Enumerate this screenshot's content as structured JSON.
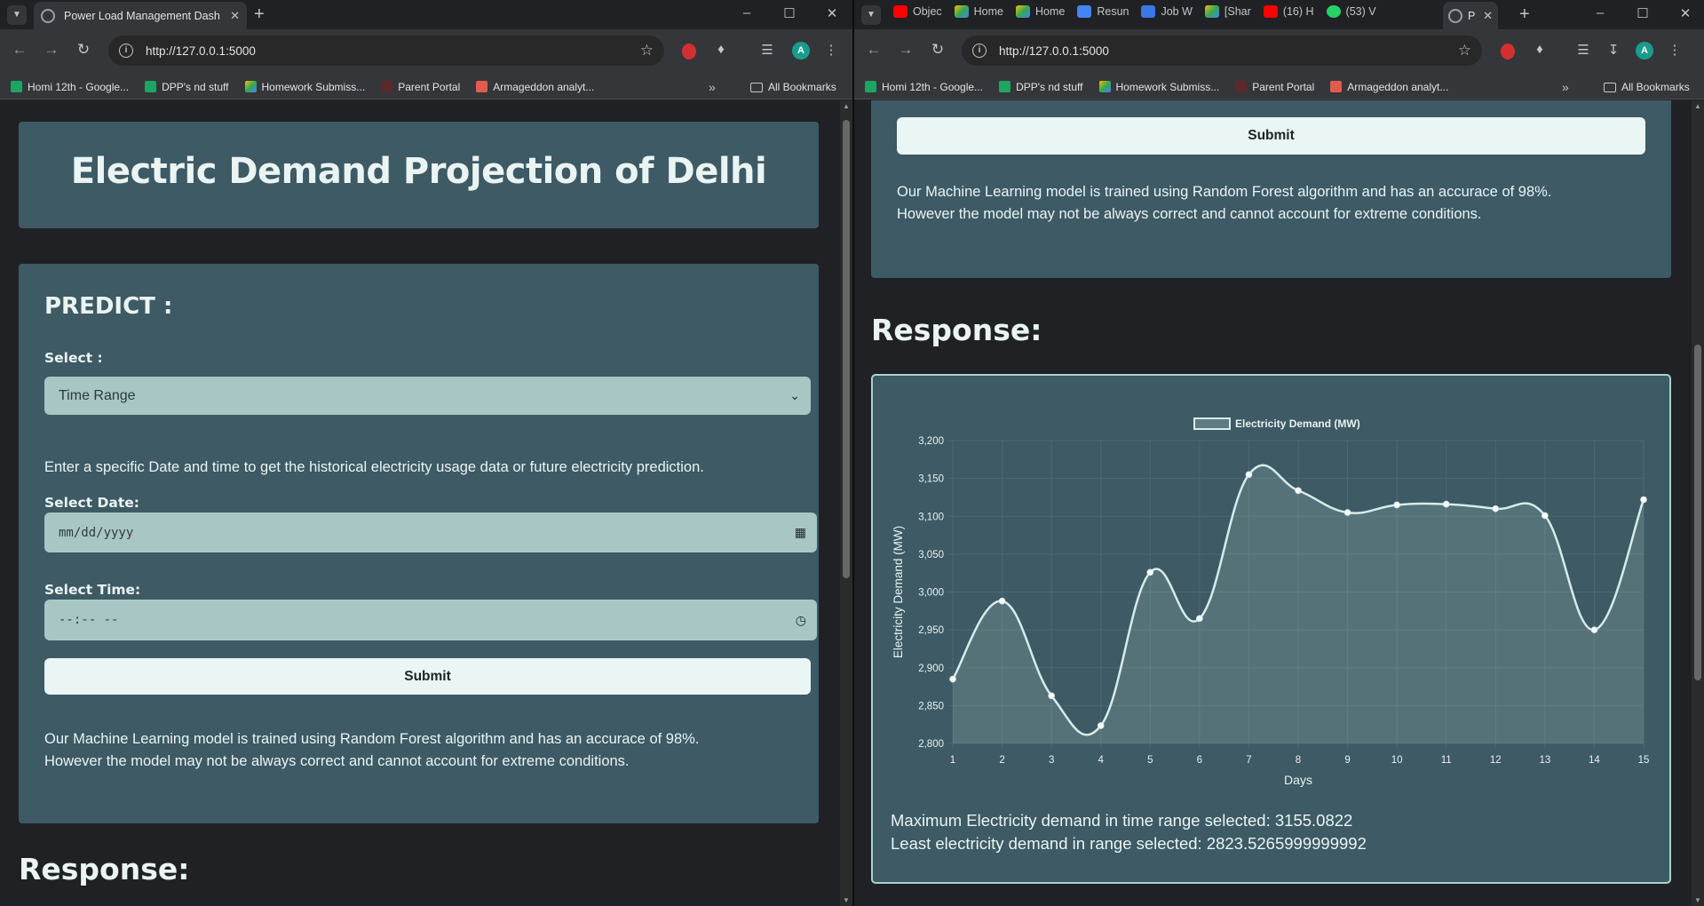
{
  "left_window": {
    "tab_title": "Power Load Management Dash",
    "url": "http://127.0.0.1:5000",
    "bookmarks": [
      "Homi 12th - Google...",
      "DPP's nd stuff",
      "Homework Submiss...",
      "Parent Portal",
      "Armageddon analyt..."
    ],
    "all_bookmarks": "All Bookmarks",
    "page": {
      "title": "Electric Demand Projection of Delhi",
      "predict_heading": "PREDICT :",
      "select_label": "Select :",
      "select_value": "Time Range",
      "instruction": "Enter a specific Date and time to get the historical electricity usage data or future electricity prediction.",
      "date_label": "Select Date:",
      "date_placeholder": "mm/dd/yyyy",
      "time_label": "Select Time:",
      "time_placeholder": "--:-- --",
      "submit_label": "Submit",
      "note_line1": "Our Machine Learning model is trained using Random Forest algorithm and has an accurace of 98%.",
      "note_line2": "However the model may not be always correct and cannot account for extreme conditions.",
      "response_heading": "Response:"
    }
  },
  "right_window": {
    "tabs": [
      {
        "label": "Objec",
        "icon": "youtube-icon"
      },
      {
        "label": "Home",
        "icon": "drive-icon"
      },
      {
        "label": "Home",
        "icon": "drive-icon"
      },
      {
        "label": "Resun",
        "icon": "docs-icon"
      },
      {
        "label": "Job W",
        "icon": "copy-icon"
      },
      {
        "label": "[Shar",
        "icon": "drive-icon"
      },
      {
        "label": "(16) H",
        "icon": "youtube-icon"
      },
      {
        "label": "(53) V",
        "icon": "whatsapp-icon"
      },
      {
        "label": "P",
        "icon": "globe-icon"
      }
    ],
    "url": "http://127.0.0.1:5000",
    "bookmarks": [
      "Homi 12th - Google...",
      "DPP's nd stuff",
      "Homework Submiss...",
      "Parent Portal",
      "Armageddon analyt..."
    ],
    "all_bookmarks": "All Bookmarks",
    "page": {
      "submit_label": "Submit",
      "note_line1": "Our Machine Learning model is trained using Random Forest algorithm and has an accurace of 98%.",
      "note_line2": "However the model may not be always correct and cannot account for extreme conditions.",
      "response_heading": "Response:",
      "max_text": "Maximum Electricity demand in time range selected: 3155.0822",
      "min_text": "Least electricity demand in range selected: 2823.5265999999992"
    }
  },
  "colors": {
    "card": "#3d5a65",
    "field": "#a8c6c3",
    "button": "#eaf6f3",
    "line": "#d7ecea"
  },
  "chart_data": {
    "type": "line",
    "legend": "Electricity Demand (MW)",
    "legend_position": "top",
    "xlabel": "Days",
    "ylabel": "Electricity Demand (MW)",
    "x": [
      1,
      2,
      3,
      4,
      5,
      6,
      7,
      8,
      9,
      10,
      11,
      12,
      13,
      14,
      15
    ],
    "values": [
      2885,
      2988,
      2863,
      2823.5266,
      3026,
      2965,
      3155.0822,
      3134,
      3105,
      3115,
      3116,
      3110,
      3101,
      2950,
      3122
    ],
    "ylim": [
      2800,
      3200
    ],
    "yticks": [
      "2,800",
      "2,850",
      "2,900",
      "2,950",
      "3,000",
      "3,050",
      "3,100",
      "3,150",
      "3,200"
    ],
    "grid": true,
    "fill": true
  }
}
